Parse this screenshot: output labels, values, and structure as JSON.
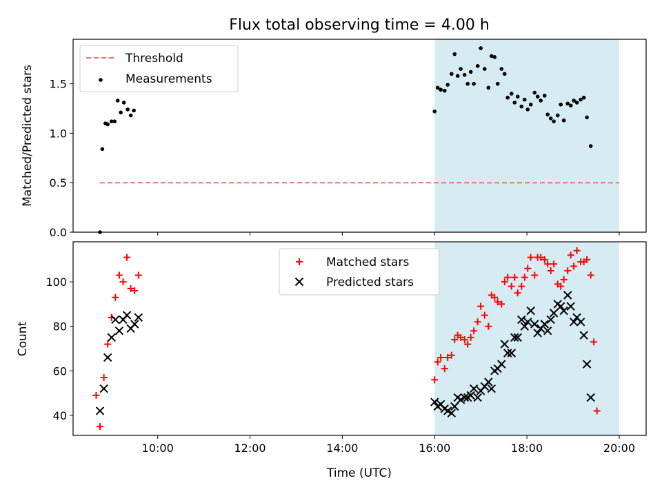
{
  "chart_data": [
    {
      "type": "scatter",
      "title": "Flux total observing time = 4.00 h",
      "ylabel": "Matched/Predicted stars",
      "xlabel": "",
      "xlim": [
        "08:10",
        "20:35"
      ],
      "ylim": [
        0,
        1.95
      ],
      "yticks": [
        {
          "value": 0.0,
          "label": "0.0"
        },
        {
          "value": 0.5,
          "label": "0.5"
        },
        {
          "value": 1.0,
          "label": "1.0"
        },
        {
          "value": 1.5,
          "label": "1.5"
        }
      ],
      "shaded_span": {
        "start": "16:00",
        "end": "20:00",
        "color": "#add8e6"
      },
      "legend_position": "upper-left",
      "threshold": {
        "name": "Threshold",
        "value": 0.5,
        "x_start": "08:45",
        "x_end": "20:00",
        "color": "#f26d6d"
      },
      "series": [
        {
          "name": "Measurements",
          "color": "#000000",
          "marker": "dot",
          "points": [
            [
              "08:45",
              0.0
            ],
            [
              "08:48",
              0.84
            ],
            [
              "08:52",
              1.1
            ],
            [
              "08:55",
              1.09
            ],
            [
              "09:00",
              1.12
            ],
            [
              "09:04",
              1.12
            ],
            [
              "09:08",
              1.33
            ],
            [
              "09:12",
              1.21
            ],
            [
              "09:16",
              1.31
            ],
            [
              "09:21",
              1.24
            ],
            [
              "09:25",
              1.18
            ],
            [
              "09:29",
              1.23
            ],
            [
              "16:00",
              1.22
            ],
            [
              "16:04",
              1.46
            ],
            [
              "16:08",
              1.44
            ],
            [
              "16:13",
              1.43
            ],
            [
              "16:17",
              1.49
            ],
            [
              "16:22",
              1.6
            ],
            [
              "16:26",
              1.8
            ],
            [
              "16:30",
              1.58
            ],
            [
              "16:34",
              1.65
            ],
            [
              "16:39",
              1.59
            ],
            [
              "16:43",
              1.5
            ],
            [
              "16:47",
              1.62
            ],
            [
              "16:51",
              1.5
            ],
            [
              "16:56",
              1.68
            ],
            [
              "17:00",
              1.86
            ],
            [
              "17:05",
              1.65
            ],
            [
              "17:10",
              1.46
            ],
            [
              "17:14",
              1.78
            ],
            [
              "17:18",
              1.77
            ],
            [
              "17:22",
              1.5
            ],
            [
              "17:27",
              1.65
            ],
            [
              "17:31",
              1.6
            ],
            [
              "17:35",
              1.36
            ],
            [
              "17:40",
              1.4
            ],
            [
              "17:44",
              1.31
            ],
            [
              "17:48",
              1.37
            ],
            [
              "17:53",
              1.27
            ],
            [
              "17:57",
              1.34
            ],
            [
              "18:01",
              1.24
            ],
            [
              "18:05",
              1.29
            ],
            [
              "18:10",
              1.41
            ],
            [
              "18:14",
              1.37
            ],
            [
              "18:18",
              1.33
            ],
            [
              "18:23",
              1.38
            ],
            [
              "18:27",
              1.19
            ],
            [
              "18:31",
              1.15
            ],
            [
              "18:35",
              1.12
            ],
            [
              "18:40",
              1.18
            ],
            [
              "18:44",
              1.29
            ],
            [
              "18:48",
              1.13
            ],
            [
              "18:53",
              1.3
            ],
            [
              "18:57",
              1.28
            ],
            [
              "19:01",
              1.33
            ],
            [
              "19:05",
              1.31
            ],
            [
              "19:10",
              1.34
            ],
            [
              "19:14",
              1.36
            ],
            [
              "19:18",
              1.16
            ],
            [
              "19:23",
              0.87
            ]
          ]
        }
      ]
    },
    {
      "type": "scatter",
      "title": "",
      "ylabel": "Count",
      "xlabel": "Time (UTC)",
      "xlim": [
        "08:10",
        "20:35"
      ],
      "ylim": [
        31,
        118
      ],
      "yticks": [
        {
          "value": 40,
          "label": "40"
        },
        {
          "value": 60,
          "label": "60"
        },
        {
          "value": 80,
          "label": "80"
        },
        {
          "value": 100,
          "label": "100"
        }
      ],
      "xticks": [
        {
          "value": "10:00",
          "label": "10:00"
        },
        {
          "value": "12:00",
          "label": "12:00"
        },
        {
          "value": "14:00",
          "label": "14:00"
        },
        {
          "value": "16:00",
          "label": "16:00"
        },
        {
          "value": "18:00",
          "label": "18:00"
        },
        {
          "value": "20:00",
          "label": "20:00"
        }
      ],
      "shaded_span": {
        "start": "16:00",
        "end": "20:00",
        "color": "#add8e6"
      },
      "legend_position": "upper-center",
      "series": [
        {
          "name": "Matched stars",
          "color": "#ff0000",
          "marker": "plus",
          "points": [
            [
              "08:40",
              49
            ],
            [
              "08:45",
              35
            ],
            [
              "08:50",
              57
            ],
            [
              "08:55",
              72
            ],
            [
              "09:00",
              84
            ],
            [
              "09:05",
              93
            ],
            [
              "09:10",
              103
            ],
            [
              "09:15",
              100
            ],
            [
              "09:20",
              111
            ],
            [
              "09:25",
              97
            ],
            [
              "09:30",
              96
            ],
            [
              "09:35",
              103
            ],
            [
              "16:00",
              56
            ],
            [
              "16:04",
              64
            ],
            [
              "16:08",
              66
            ],
            [
              "16:13",
              61
            ],
            [
              "16:17",
              66
            ],
            [
              "16:22",
              67
            ],
            [
              "16:26",
              74
            ],
            [
              "16:30",
              76
            ],
            [
              "16:34",
              75
            ],
            [
              "16:39",
              74
            ],
            [
              "16:43",
              72
            ],
            [
              "16:47",
              75
            ],
            [
              "16:51",
              78
            ],
            [
              "16:56",
              82
            ],
            [
              "17:00",
              89
            ],
            [
              "17:05",
              85
            ],
            [
              "17:10",
              80
            ],
            [
              "17:14",
              94
            ],
            [
              "17:18",
              93
            ],
            [
              "17:22",
              91
            ],
            [
              "17:27",
              90
            ],
            [
              "17:31",
              100
            ],
            [
              "17:35",
              102
            ],
            [
              "17:40",
              98
            ],
            [
              "17:44",
              102
            ],
            [
              "17:48",
              95
            ],
            [
              "17:53",
              98
            ],
            [
              "17:57",
              102
            ],
            [
              "18:01",
              106
            ],
            [
              "18:05",
              111
            ],
            [
              "18:10",
              103
            ],
            [
              "18:14",
              111
            ],
            [
              "18:18",
              111
            ],
            [
              "18:23",
              110
            ],
            [
              "18:27",
              108
            ],
            [
              "18:31",
              105
            ],
            [
              "18:35",
              108
            ],
            [
              "18:40",
              99
            ],
            [
              "18:44",
              98
            ],
            [
              "18:48",
              101
            ],
            [
              "18:53",
              105
            ],
            [
              "18:57",
              112
            ],
            [
              "19:01",
              107
            ],
            [
              "19:05",
              114
            ],
            [
              "19:10",
              109
            ],
            [
              "19:14",
              109
            ],
            [
              "19:18",
              110
            ],
            [
              "19:23",
              103
            ],
            [
              "19:27",
              73
            ],
            [
              "19:31",
              42
            ]
          ]
        },
        {
          "name": "Predicted stars",
          "color": "#000000",
          "marker": "x",
          "points": [
            [
              "08:45",
              42
            ],
            [
              "08:50",
              52
            ],
            [
              "08:55",
              66
            ],
            [
              "09:00",
              75
            ],
            [
              "09:05",
              83
            ],
            [
              "09:10",
              78
            ],
            [
              "09:15",
              83
            ],
            [
              "09:20",
              85
            ],
            [
              "09:25",
              79
            ],
            [
              "09:30",
              81
            ],
            [
              "09:35",
              84
            ],
            [
              "16:00",
              46
            ],
            [
              "16:04",
              44
            ],
            [
              "16:08",
              45
            ],
            [
              "16:13",
              43
            ],
            [
              "16:17",
              42
            ],
            [
              "16:22",
              41
            ],
            [
              "16:26",
              44
            ],
            [
              "16:30",
              48
            ],
            [
              "16:34",
              47
            ],
            [
              "16:39",
              48
            ],
            [
              "16:43",
              48
            ],
            [
              "16:47",
              49
            ],
            [
              "16:51",
              52
            ],
            [
              "16:56",
              48
            ],
            [
              "17:00",
              51
            ],
            [
              "17:05",
              53
            ],
            [
              "17:10",
              55
            ],
            [
              "17:14",
              52
            ],
            [
              "17:18",
              60
            ],
            [
              "17:22",
              61
            ],
            [
              "17:27",
              63
            ],
            [
              "17:31",
              72
            ],
            [
              "17:35",
              68
            ],
            [
              "17:40",
              68
            ],
            [
              "17:44",
              75
            ],
            [
              "17:48",
              75
            ],
            [
              "17:53",
              83
            ],
            [
              "17:57",
              80
            ],
            [
              "18:01",
              82
            ],
            [
              "18:05",
              87
            ],
            [
              "18:10",
              81
            ],
            [
              "18:14",
              77
            ],
            [
              "18:18",
              79
            ],
            [
              "18:23",
              81
            ],
            [
              "18:27",
              78
            ],
            [
              "18:31",
              83
            ],
            [
              "18:35",
              86
            ],
            [
              "18:40",
              90
            ],
            [
              "18:44",
              89
            ],
            [
              "18:48",
              87
            ],
            [
              "18:53",
              94
            ],
            [
              "18:57",
              89
            ],
            [
              "19:01",
              82
            ],
            [
              "19:05",
              84
            ],
            [
              "19:10",
              82
            ],
            [
              "19:14",
              76
            ],
            [
              "19:18",
              63
            ],
            [
              "19:23",
              48
            ]
          ]
        }
      ]
    }
  ]
}
